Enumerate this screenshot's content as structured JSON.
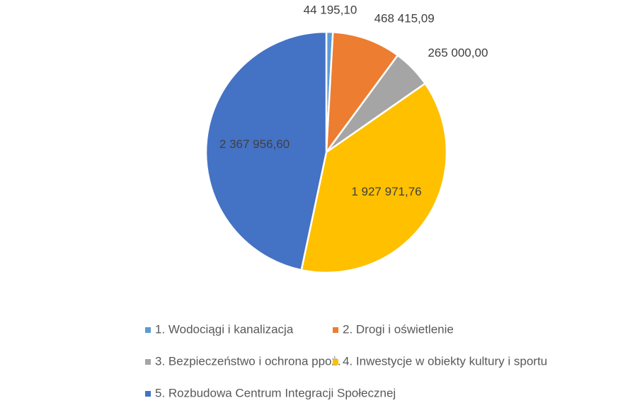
{
  "chart_data": {
    "type": "pie",
    "categories": [
      "1. Wodociągi i kanalizacja",
      "2. Drogi i oświetlenie",
      "3. Bezpieczeństwo i ochrona ppoż.",
      "4. Inwestycje w obiekty kultury i sportu",
      "5. Rozbudowa Centrum Integracji Społecznej"
    ],
    "values": [
      44195.1,
      468415.09,
      265000.0,
      1927971.76,
      2367956.6
    ],
    "value_labels": [
      "44 195,10",
      "468 415,09",
      "265 000,00",
      "1 927 971,76",
      "2 367 956,60"
    ],
    "colors": [
      "#5b9bd5",
      "#ed7d31",
      "#a5a5a5",
      "#ffc000",
      "#4472c4"
    ],
    "legend": "bottom"
  }
}
